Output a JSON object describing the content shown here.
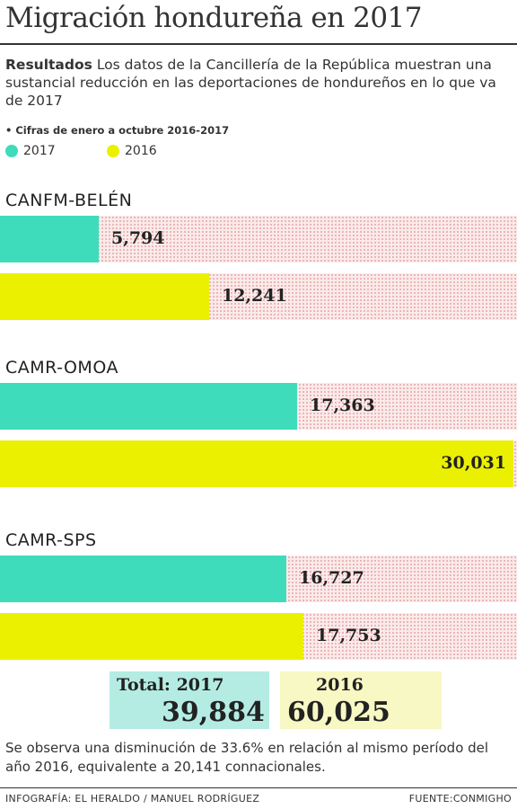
{
  "title": "Migración hondureña en 2017",
  "intro": {
    "bold": "Resultados",
    "text": "Los datos de la Cancillería de la República muestran una sustancial reducción en las deportaciones de hondureños en lo que va de 2017"
  },
  "note": "• Cifras de enero a octubre 2016-2017",
  "colors": {
    "y2017": "#3fdcbc",
    "y2016": "#ebf000",
    "total2017_bg": "#b4ece3",
    "total2016_bg": "#f8f8c4"
  },
  "chart_data": {
    "type": "bar",
    "orientation": "horizontal",
    "categories": [
      "CANFM-BELÉN",
      "CAMR-OMOA",
      "CAMR-SPS"
    ],
    "series": [
      {
        "name": "2017",
        "values": [
          5794,
          17363,
          16727
        ],
        "labels": [
          "5,794",
          "17,363",
          "16,727"
        ]
      },
      {
        "name": "2016",
        "values": [
          12241,
          30031,
          17753
        ],
        "labels": [
          "12,241",
          "30,031",
          "17,753"
        ]
      }
    ],
    "xlim": [
      0,
      30031
    ],
    "legend": "top-left"
  },
  "totals": {
    "label_2017": "Total: 2017",
    "value_2017": "39,884",
    "label_2016": "2016",
    "value_2016": "60,025"
  },
  "summary": "Se observa una disminución de 33.6% en relación al mismo período del año 2016, equivalente a 20,141 connacionales.",
  "credits": {
    "left": "INFOGRAFÍA: EL HERALDO / MANUEL RODRÍGUEZ",
    "right": "FUENTE:CONMIGHO"
  }
}
